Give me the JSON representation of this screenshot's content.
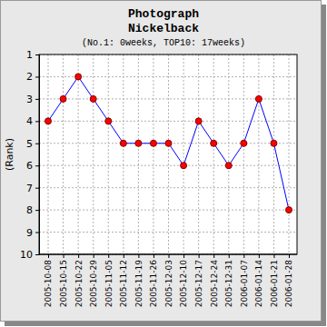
{
  "chart_data": {
    "type": "line",
    "title": "Photograph",
    "subtitle": "Nickelback",
    "annotations": [
      "(No.1: 0weeks, TOP10: 17weeks)"
    ],
    "y_label": "(Rank)",
    "categories": [
      "2005-10-08",
      "2005-10-15",
      "2005-10-22",
      "2005-10-29",
      "2005-11-05",
      "2005-11-12",
      "2005-11-19",
      "2005-11-26",
      "2005-12-03",
      "2005-12-10",
      "2005-12-17",
      "2005-12-24",
      "2005-12-31",
      "2006-01-07",
      "2006-01-14",
      "2006-01-21",
      "2006-01-28"
    ],
    "values": [
      4,
      3,
      2,
      3,
      4,
      5,
      5,
      5,
      5,
      6,
      4,
      5,
      6,
      5,
      3,
      5,
      8
    ],
    "color": "#0000ff",
    "marker": "circle",
    "ylim": [
      10,
      1
    ],
    "yticks": [
      1,
      2,
      3,
      4,
      5,
      6,
      7,
      8,
      9,
      10
    ],
    "grid": true
  }
}
